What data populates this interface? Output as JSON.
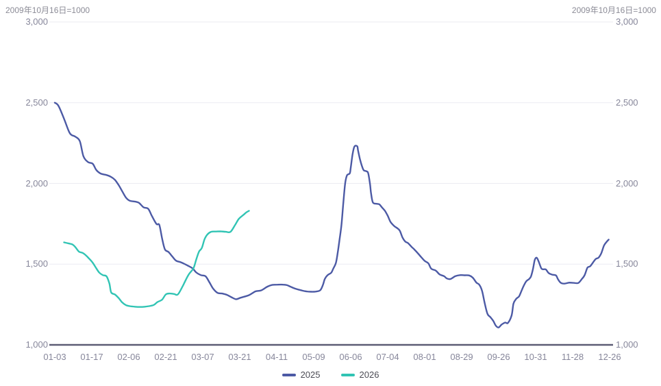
{
  "notes": {
    "left": "2009年10月16日=1000",
    "right": "2009年10月16日=1000"
  },
  "colors": {
    "series_2025": "#4c5aa5",
    "series_2026": "#31c4b4",
    "gridline": "#ebebf2",
    "axis_line": "#5c5c74",
    "tick_text": "#86869a",
    "note_text": "#8b8b96",
    "legend_text": "#4b4b54"
  },
  "chart_data": {
    "type": "line",
    "title": "",
    "xlabel": "",
    "ylabel": "",
    "grid": true,
    "legend_position": "bottom-center",
    "x_axis": {
      "type": "category",
      "tick_labels": [
        "01-03",
        "01-17",
        "02-06",
        "02-21",
        "03-07",
        "03-21",
        "04-11",
        "05-09",
        "06-06",
        "07-04",
        "08-01",
        "08-29",
        "09-26",
        "10-31",
        "11-28",
        "12-26"
      ]
    },
    "y_axis": {
      "min": 1000,
      "max": 3000,
      "tick_interval": 500,
      "tick_values": [
        3000,
        2500,
        2000,
        1500,
        1000
      ],
      "tick_labels_left": [
        "3,000",
        "2,500",
        "2,000",
        "1,500",
        "1,000"
      ],
      "tick_labels_right": [
        "3,000",
        "2,500",
        "2,000",
        "1,500",
        "1,000"
      ]
    },
    "series": [
      {
        "name": "2025",
        "color": "#4c5aa5",
        "points": [
          [
            0,
            2500
          ],
          [
            0.4,
            2480
          ],
          [
            1,
            2400
          ],
          [
            1.5,
            2325
          ],
          [
            1.8,
            2300
          ],
          [
            2.2,
            2290
          ],
          [
            2.7,
            2262
          ],
          [
            3.1,
            2168
          ],
          [
            3.6,
            2132
          ],
          [
            4.1,
            2122
          ],
          [
            4.5,
            2082
          ],
          [
            5,
            2060
          ],
          [
            5.6,
            2052
          ],
          [
            6.1,
            2040
          ],
          [
            6.5,
            2022
          ],
          [
            6.9,
            1990
          ],
          [
            7.3,
            1950
          ],
          [
            7.7,
            1912
          ],
          [
            8.1,
            1893
          ],
          [
            8.7,
            1887
          ],
          [
            9.1,
            1880
          ],
          [
            9.6,
            1852
          ],
          [
            10.1,
            1843
          ],
          [
            10.5,
            1798
          ],
          [
            11,
            1748
          ],
          [
            11.3,
            1743
          ],
          [
            11.6,
            1660
          ],
          [
            11.9,
            1592
          ],
          [
            12.3,
            1575
          ],
          [
            12.7,
            1548
          ],
          [
            13.1,
            1522
          ],
          [
            13.6,
            1512
          ],
          [
            14,
            1502
          ],
          [
            14.4,
            1490
          ],
          [
            14.9,
            1474
          ],
          [
            15.3,
            1448
          ],
          [
            15.8,
            1432
          ],
          [
            16.3,
            1425
          ],
          [
            16.7,
            1390
          ],
          [
            17.1,
            1350
          ],
          [
            17.6,
            1322
          ],
          [
            18.1,
            1318
          ],
          [
            18.6,
            1310
          ],
          [
            19.1,
            1295
          ],
          [
            19.6,
            1283
          ],
          [
            20.1,
            1292
          ],
          [
            21,
            1308
          ],
          [
            21.7,
            1331
          ],
          [
            22.3,
            1337
          ],
          [
            23,
            1361
          ],
          [
            23.5,
            1371
          ],
          [
            24.1,
            1373
          ],
          [
            24.7,
            1373
          ],
          [
            25.1,
            1370
          ],
          [
            25.5,
            1360
          ],
          [
            26,
            1348
          ],
          [
            26.7,
            1337
          ],
          [
            27.2,
            1331
          ],
          [
            27.7,
            1329
          ],
          [
            28.2,
            1330
          ],
          [
            28.7,
            1338
          ],
          [
            29,
            1372
          ],
          [
            29.2,
            1408
          ],
          [
            29.5,
            1432
          ],
          [
            29.9,
            1447
          ],
          [
            30.1,
            1471
          ],
          [
            30.4,
            1508
          ],
          [
            30.6,
            1573
          ],
          [
            30.8,
            1655
          ],
          [
            31,
            1743
          ],
          [
            31.2,
            1878
          ],
          [
            31.4,
            2000
          ],
          [
            31.6,
            2050
          ],
          [
            31.9,
            2062
          ],
          [
            32,
            2096
          ],
          [
            32.2,
            2180
          ],
          [
            32.4,
            2228
          ],
          [
            32.7,
            2230
          ],
          [
            32.8,
            2202
          ],
          [
            33,
            2150
          ],
          [
            33.2,
            2110
          ],
          [
            33.4,
            2082
          ],
          [
            33.7,
            2075
          ],
          [
            33.9,
            2062
          ],
          [
            34.1,
            1990
          ],
          [
            34.2,
            1939
          ],
          [
            34.4,
            1882
          ],
          [
            34.8,
            1874
          ],
          [
            35.1,
            1870
          ],
          [
            35.4,
            1850
          ],
          [
            35.7,
            1830
          ],
          [
            36,
            1800
          ],
          [
            36.3,
            1762
          ],
          [
            36.7,
            1736
          ],
          [
            37,
            1724
          ],
          [
            37.3,
            1708
          ],
          [
            37.6,
            1665
          ],
          [
            37.9,
            1640
          ],
          [
            38.2,
            1630
          ],
          [
            38.6,
            1606
          ],
          [
            38.9,
            1590
          ],
          [
            39.3,
            1565
          ],
          [
            39.6,
            1545
          ],
          [
            40,
            1520
          ],
          [
            40.4,
            1505
          ],
          [
            40.7,
            1472
          ],
          [
            41.2,
            1460
          ],
          [
            41.6,
            1437
          ],
          [
            42.1,
            1425
          ],
          [
            42.4,
            1411
          ],
          [
            42.8,
            1408
          ],
          [
            43.3,
            1425
          ],
          [
            43.8,
            1432
          ],
          [
            44.3,
            1431
          ],
          [
            44.8,
            1430
          ],
          [
            45.2,
            1416
          ],
          [
            45.6,
            1385
          ],
          [
            45.9,
            1373
          ],
          [
            46.2,
            1335
          ],
          [
            46.5,
            1255
          ],
          [
            46.8,
            1191
          ],
          [
            47.1,
            1172
          ],
          [
            47.4,
            1150
          ],
          [
            47.7,
            1118
          ],
          [
            48,
            1108
          ],
          [
            48.3,
            1125
          ],
          [
            48.7,
            1138
          ],
          [
            49,
            1136
          ],
          [
            49.4,
            1182
          ],
          [
            49.6,
            1255
          ],
          [
            49.9,
            1285
          ],
          [
            50.2,
            1300
          ],
          [
            50.4,
            1325
          ],
          [
            50.7,
            1365
          ],
          [
            51,
            1395
          ],
          [
            51.3,
            1408
          ],
          [
            51.5,
            1425
          ],
          [
            51.7,
            1468
          ],
          [
            51.9,
            1525
          ],
          [
            52.1,
            1540
          ],
          [
            52.3,
            1520
          ],
          [
            52.6,
            1475
          ],
          [
            52.8,
            1468
          ],
          [
            53.1,
            1467
          ],
          [
            53.4,
            1445
          ],
          [
            53.8,
            1435
          ],
          [
            54.2,
            1430
          ],
          [
            54.4,
            1408
          ],
          [
            54.7,
            1385
          ],
          [
            55.1,
            1379
          ],
          [
            55.6,
            1385
          ],
          [
            56.1,
            1384
          ],
          [
            56.6,
            1383
          ],
          [
            57,
            1408
          ],
          [
            57.3,
            1432
          ],
          [
            57.6,
            1478
          ],
          [
            57.9,
            1487
          ],
          [
            58.2,
            1510
          ],
          [
            58.5,
            1532
          ],
          [
            58.8,
            1540
          ],
          [
            59.1,
            1568
          ],
          [
            59.4,
            1616
          ],
          [
            59.7,
            1640
          ],
          [
            59.9,
            1652
          ]
        ]
      },
      {
        "name": "2026",
        "color": "#31c4b4",
        "points": [
          [
            1,
            1635
          ],
          [
            1.5,
            1628
          ],
          [
            1.9,
            1622
          ],
          [
            2.2,
            1607
          ],
          [
            2.6,
            1578
          ],
          [
            3,
            1570
          ],
          [
            3.3,
            1558
          ],
          [
            3.7,
            1535
          ],
          [
            4.1,
            1509
          ],
          [
            4.4,
            1482
          ],
          [
            4.8,
            1448
          ],
          [
            5.2,
            1432
          ],
          [
            5.6,
            1424
          ],
          [
            5.9,
            1380
          ],
          [
            6.1,
            1325
          ],
          [
            6.5,
            1312
          ],
          [
            6.9,
            1290
          ],
          [
            7.3,
            1262
          ],
          [
            7.7,
            1246
          ],
          [
            8.1,
            1240
          ],
          [
            8.7,
            1236
          ],
          [
            9.2,
            1235
          ],
          [
            9.7,
            1236
          ],
          [
            10.2,
            1240
          ],
          [
            10.7,
            1247
          ],
          [
            11.1,
            1265
          ],
          [
            11.6,
            1280
          ],
          [
            12,
            1312
          ],
          [
            12.4,
            1318
          ],
          [
            12.9,
            1315
          ],
          [
            13.3,
            1312
          ],
          [
            13.8,
            1360
          ],
          [
            14.1,
            1395
          ],
          [
            14.5,
            1438
          ],
          [
            15,
            1475
          ],
          [
            15.3,
            1530
          ],
          [
            15.6,
            1578
          ],
          [
            15.9,
            1600
          ],
          [
            16.2,
            1655
          ],
          [
            16.5,
            1684
          ],
          [
            16.9,
            1700
          ],
          [
            17.4,
            1702
          ],
          [
            17.9,
            1703
          ],
          [
            18.5,
            1700
          ],
          [
            19,
            1700
          ],
          [
            19.5,
            1743
          ],
          [
            19.9,
            1780
          ],
          [
            20.4,
            1805
          ],
          [
            20.7,
            1820
          ],
          [
            21,
            1830
          ]
        ]
      }
    ],
    "legend": [
      "2025",
      "2026"
    ]
  }
}
